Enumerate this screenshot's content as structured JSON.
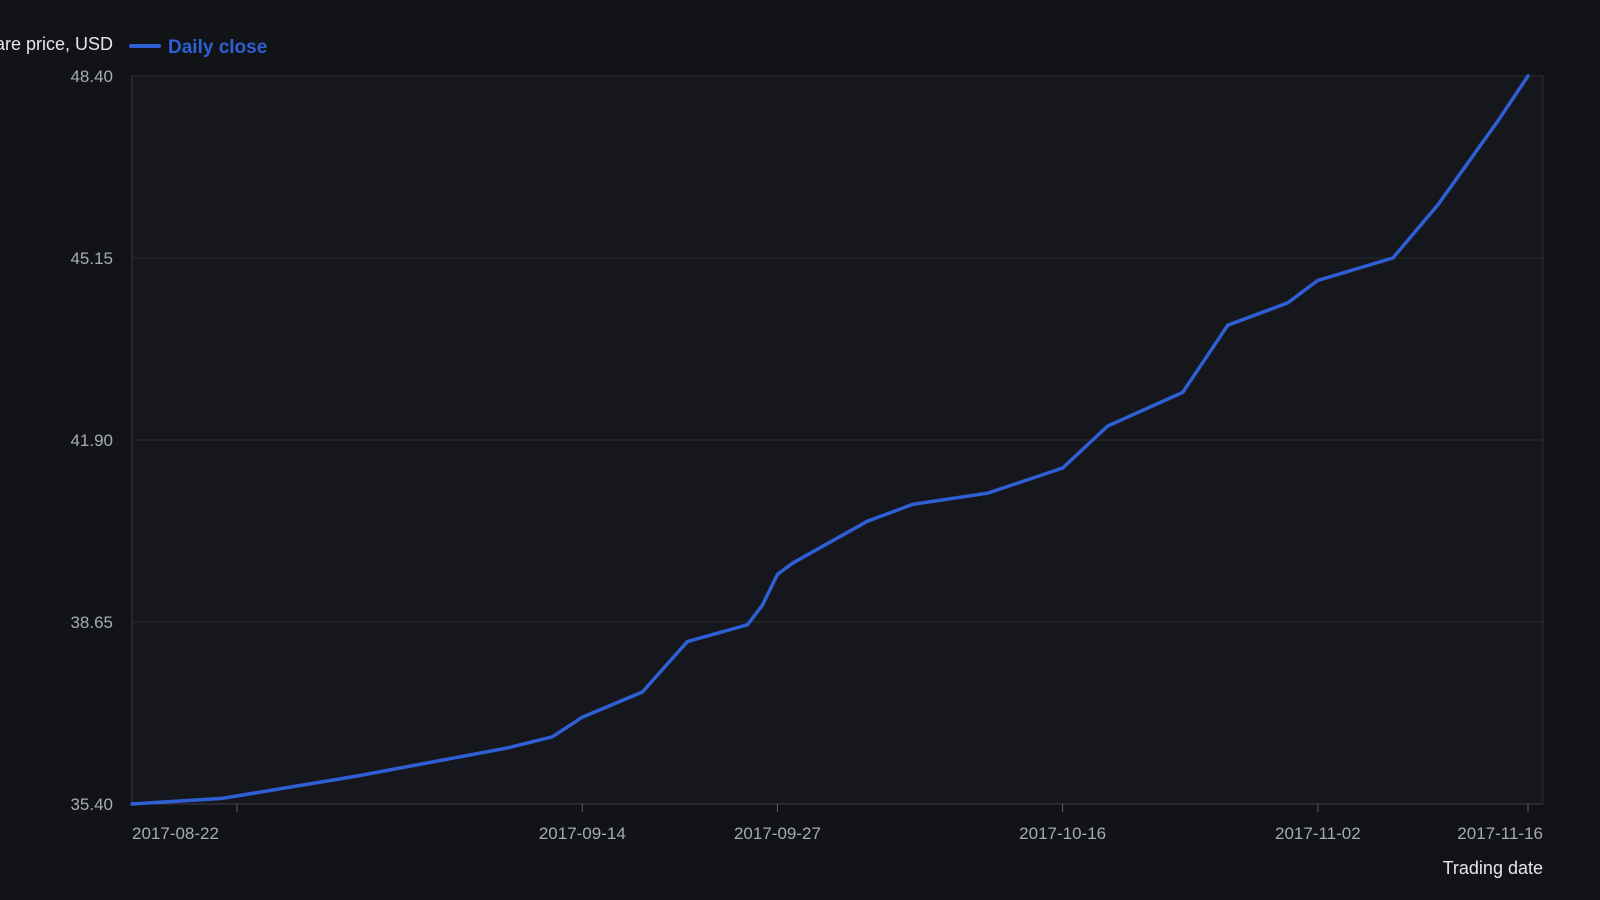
{
  "chart_data": {
    "type": "line",
    "title": "",
    "ylabel": "Share price, USD",
    "xlabel": "Trading date",
    "ylim": [
      35.4,
      48.4
    ],
    "xlim": [
      "2017-08-15",
      "2017-11-17"
    ],
    "y_ticks": [
      "35.40",
      "38.65",
      "41.90",
      "45.15",
      "48.40"
    ],
    "x_ticks": [
      "2017-08-22",
      "2017-09-14",
      "2017-09-27",
      "2017-10-16",
      "2017-11-02",
      "2017-11-16"
    ],
    "grid": true,
    "legend_placement": "top-left",
    "series": [
      {
        "name": "Daily close",
        "color": "#2f5fd4",
        "x": [
          "2017-08-15",
          "2017-08-21",
          "2017-08-30",
          "2017-09-09",
          "2017-09-12",
          "2017-09-14",
          "2017-09-18",
          "2017-09-21",
          "2017-09-25",
          "2017-09-26",
          "2017-09-27",
          "2017-09-28",
          "2017-10-03",
          "2017-10-06",
          "2017-10-11",
          "2017-10-16",
          "2017-10-19",
          "2017-10-24",
          "2017-10-27",
          "2017-10-31",
          "2017-11-02",
          "2017-11-07",
          "2017-11-10",
          "2017-11-14",
          "2017-11-16"
        ],
        "y": [
          35.4,
          35.5,
          35.9,
          36.4,
          36.6,
          36.95,
          37.4,
          38.3,
          38.6,
          38.95,
          39.5,
          39.7,
          40.45,
          40.75,
          40.95,
          41.4,
          42.15,
          42.75,
          43.95,
          44.35,
          44.75,
          45.15,
          46.1,
          47.6,
          48.4
        ]
      }
    ]
  }
}
